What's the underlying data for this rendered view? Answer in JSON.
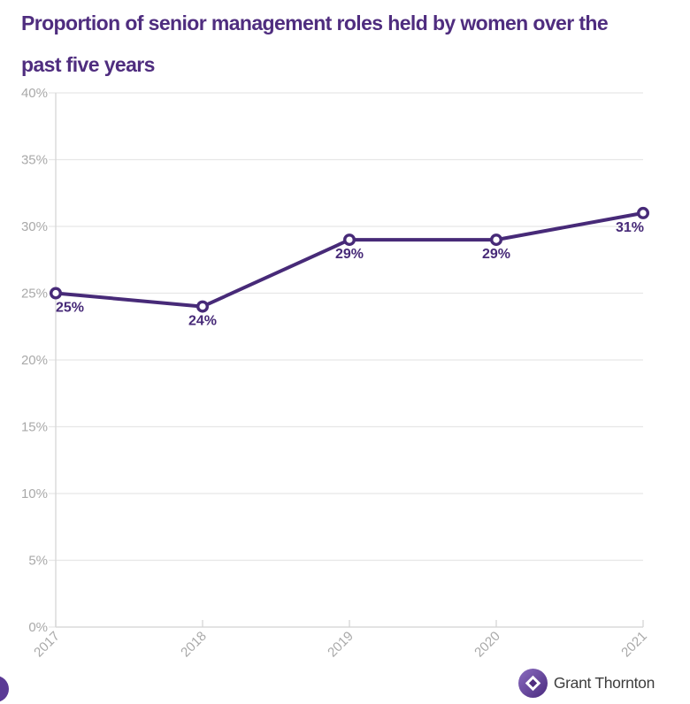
{
  "header": {
    "title": "Proportion of senior management roles held by women over the\npast five years"
  },
  "chart_data": {
    "type": "line",
    "title": "Proportion of senior management roles held by women over the past five years",
    "x_labels": [
      "2017",
      "2018",
      "2019",
      "2020",
      "2021"
    ],
    "values": [
      25,
      24,
      29,
      29,
      31
    ],
    "point_labels": [
      "25%",
      "24%",
      "29%",
      "29%",
      "31%"
    ],
    "ylim": [
      0,
      40
    ],
    "ytick_values": [
      0,
      5,
      10,
      15,
      20,
      25,
      30,
      35,
      40
    ],
    "ytick_labels": [
      "0%",
      "5%",
      "10%",
      "15%",
      "20%",
      "25%",
      "30%",
      "35%",
      "40%"
    ],
    "grid": true,
    "legend": "none"
  },
  "colors": {
    "title": "#4f2d7f",
    "line": "#472a78",
    "marker_fill": "#ffffff",
    "point_label": "#472a78",
    "axis_text": "#a9a9a9",
    "gridline": "#e7e7e7",
    "axis_line": "#d6d6d6",
    "background": "#ffffff",
    "logo_purple": "#4f2d7f",
    "logo_purple_light": "#8a6cc0",
    "logo_text_color": "#3d3d3d",
    "floating_button": "#5b3a95"
  },
  "footer": {
    "logo_text": "Grant Thornton"
  }
}
